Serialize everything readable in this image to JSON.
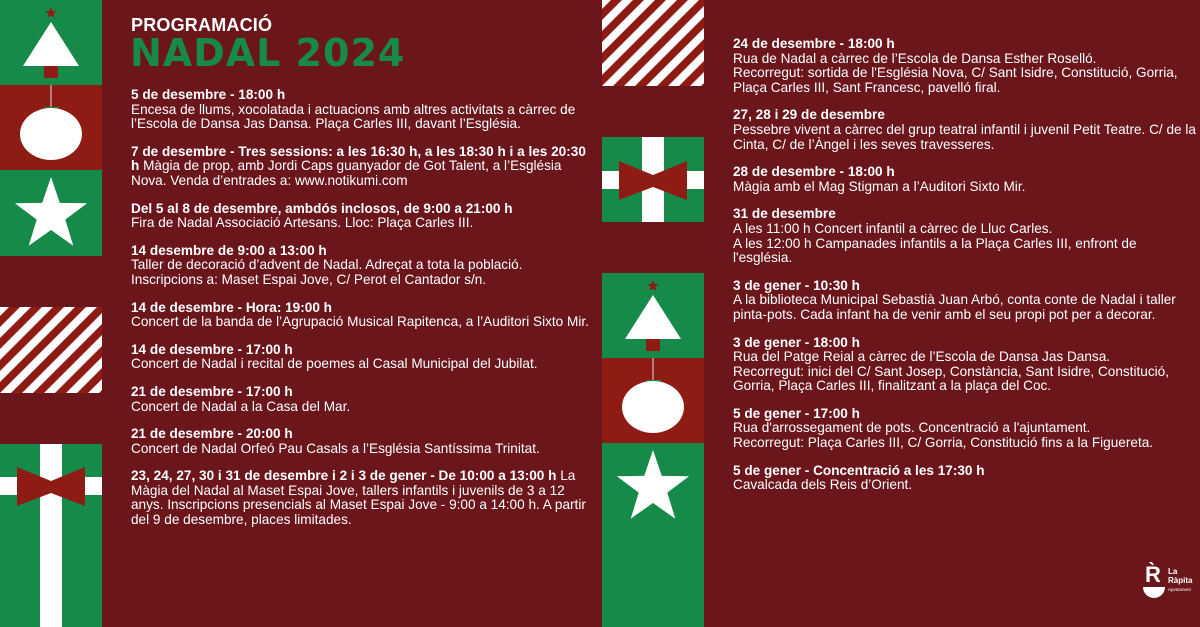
{
  "colors": {
    "background": "#6a161b",
    "green": "#168a48",
    "red": "#8f1c14",
    "white": "#ffffff"
  },
  "header": {
    "subtitle": "PROGRAMACIÓ",
    "title": "NADAL 2024"
  },
  "events_left": [
    {
      "when": "5 de desembre - 18:00 h",
      "desc": "Encesa de llums, xocolatada i actuacions amb altres activitats a càrrec de l’Escola de Dansa Jas Dansa. Plaça Carles III, davant l’Església."
    },
    {
      "when": "7 de desembre - Tres sessions: a les 16:30 h, a les 18:30 h i a les 20:30 h",
      "desc": " Màgia de prop, amb Jordi Caps guanyador de Got Talent, a l’Església Nova. Venda d’entrades a: www.notikumi.com"
    },
    {
      "when": "Del 5 al 8 de desembre, ambdós inclosos, de 9:00 a 21:00 h",
      "desc": "Fira de Nadal Associació Artesans. Lloc: Plaça Carles III."
    },
    {
      "when": "14 desembre de 9:00 a 13:00 h",
      "desc": "Taller de decoració d’advent de Nadal. Adreçat a tota la població. Inscripcions a: Maset Espai Jove, C/ Perot el Cantador s/n."
    },
    {
      "when": "14 de desembre - Hora: 19:00 h",
      "desc": "Concert de la banda de l’Agrupació Musical Rapitenca, a l’Auditori Sixto Mir."
    },
    {
      "when": "14 de desembre - 17:00 h",
      "desc": "Concert de Nadal i recital de poemes al Casal Municipal del Jubilat."
    },
    {
      "when": "21 de desembre - 17:00 h",
      "desc": "Concert de Nadal a la Casa del Mar."
    },
    {
      "when": "21 de desembre - 20:00 h",
      "desc": "Concert de Nadal Orfeó Pau Casals a l’Església Santíssima Trinitat."
    },
    {
      "when": "23, 24, 27, 30 i 31 de desembre i 2 i 3 de gener - De 10:00 a 13:00 h",
      "desc": " La Màgia del Nadal al Maset Espai Jove, tallers infantils i juvenils de 3 a 12 anys.  Inscripcions presencials al Maset Espai Jove - 9:00 a 14:00 h. A partir del 9 de desembre, places limitades."
    }
  ],
  "events_right": [
    {
      "when": "24 de desembre - 18:00 h",
      "desc": "Rua de Nadal a càrrec de l’Escola de Dansa Esther Roselló.\nRecorregut: sortida de l'Església Nova, C/ Sant Isidre, Constitució, Gorria, Plaça Carles III, Sant Francesc, pavelló firal."
    },
    {
      "when": "27, 28 i 29 de desembre",
      "desc": "Pessebre vivent a càrrec del grup teatral infantil i juvenil Petit Teatre. C/ de la Cinta, C/ de l’Àngel i les seves travesseres."
    },
    {
      "when": "28 de desembre - 18:00 h",
      "desc": "Màgia amb el Mag Stigman a l’Auditori Sixto Mir."
    },
    {
      "when": "31 de desembre",
      "desc": "A les 11:00 h Concert infantil a càrrec de Lluc Carles.\nA les 12:00 h Campanades infantils a la Plaça Carles III, enfront de l'església."
    },
    {
      "when": "3 de gener - 10:30 h",
      "desc": "A la biblioteca Municipal Sebastià Juan Arbó, conta conte de Nadal i taller pinta-pots. Cada infant ha de venir amb el seu propi pot per a decorar."
    },
    {
      "when": "3 de gener - 18:00 h",
      "desc": "Rua del Patge Reial a càrrec de l’Escola de Dansa Jas Dansa.\nRecorregut: inici del C/ Sant Josep, Constància, Sant Isidre, Constitució, Gorria, Plaça Carles III, finalitzant a la plaça del Coc."
    },
    {
      "when": "5 de gener - 17:00 h",
      "desc": "Rua d'arrossegament de pots. Concentració a l'ajuntament.\nRecorregut: Plaça Carles III, C/ Gorria, Constitució fins a la Figuereta."
    },
    {
      "when": "5 de gener - Concentració a les 17:30 h",
      "desc": "Cavalcada dels Reis d’Orient."
    }
  ],
  "logo": {
    "mark": "R̀",
    "name_line1": "La",
    "name_line2": "Ràpita",
    "sub": "Ajuntament"
  }
}
